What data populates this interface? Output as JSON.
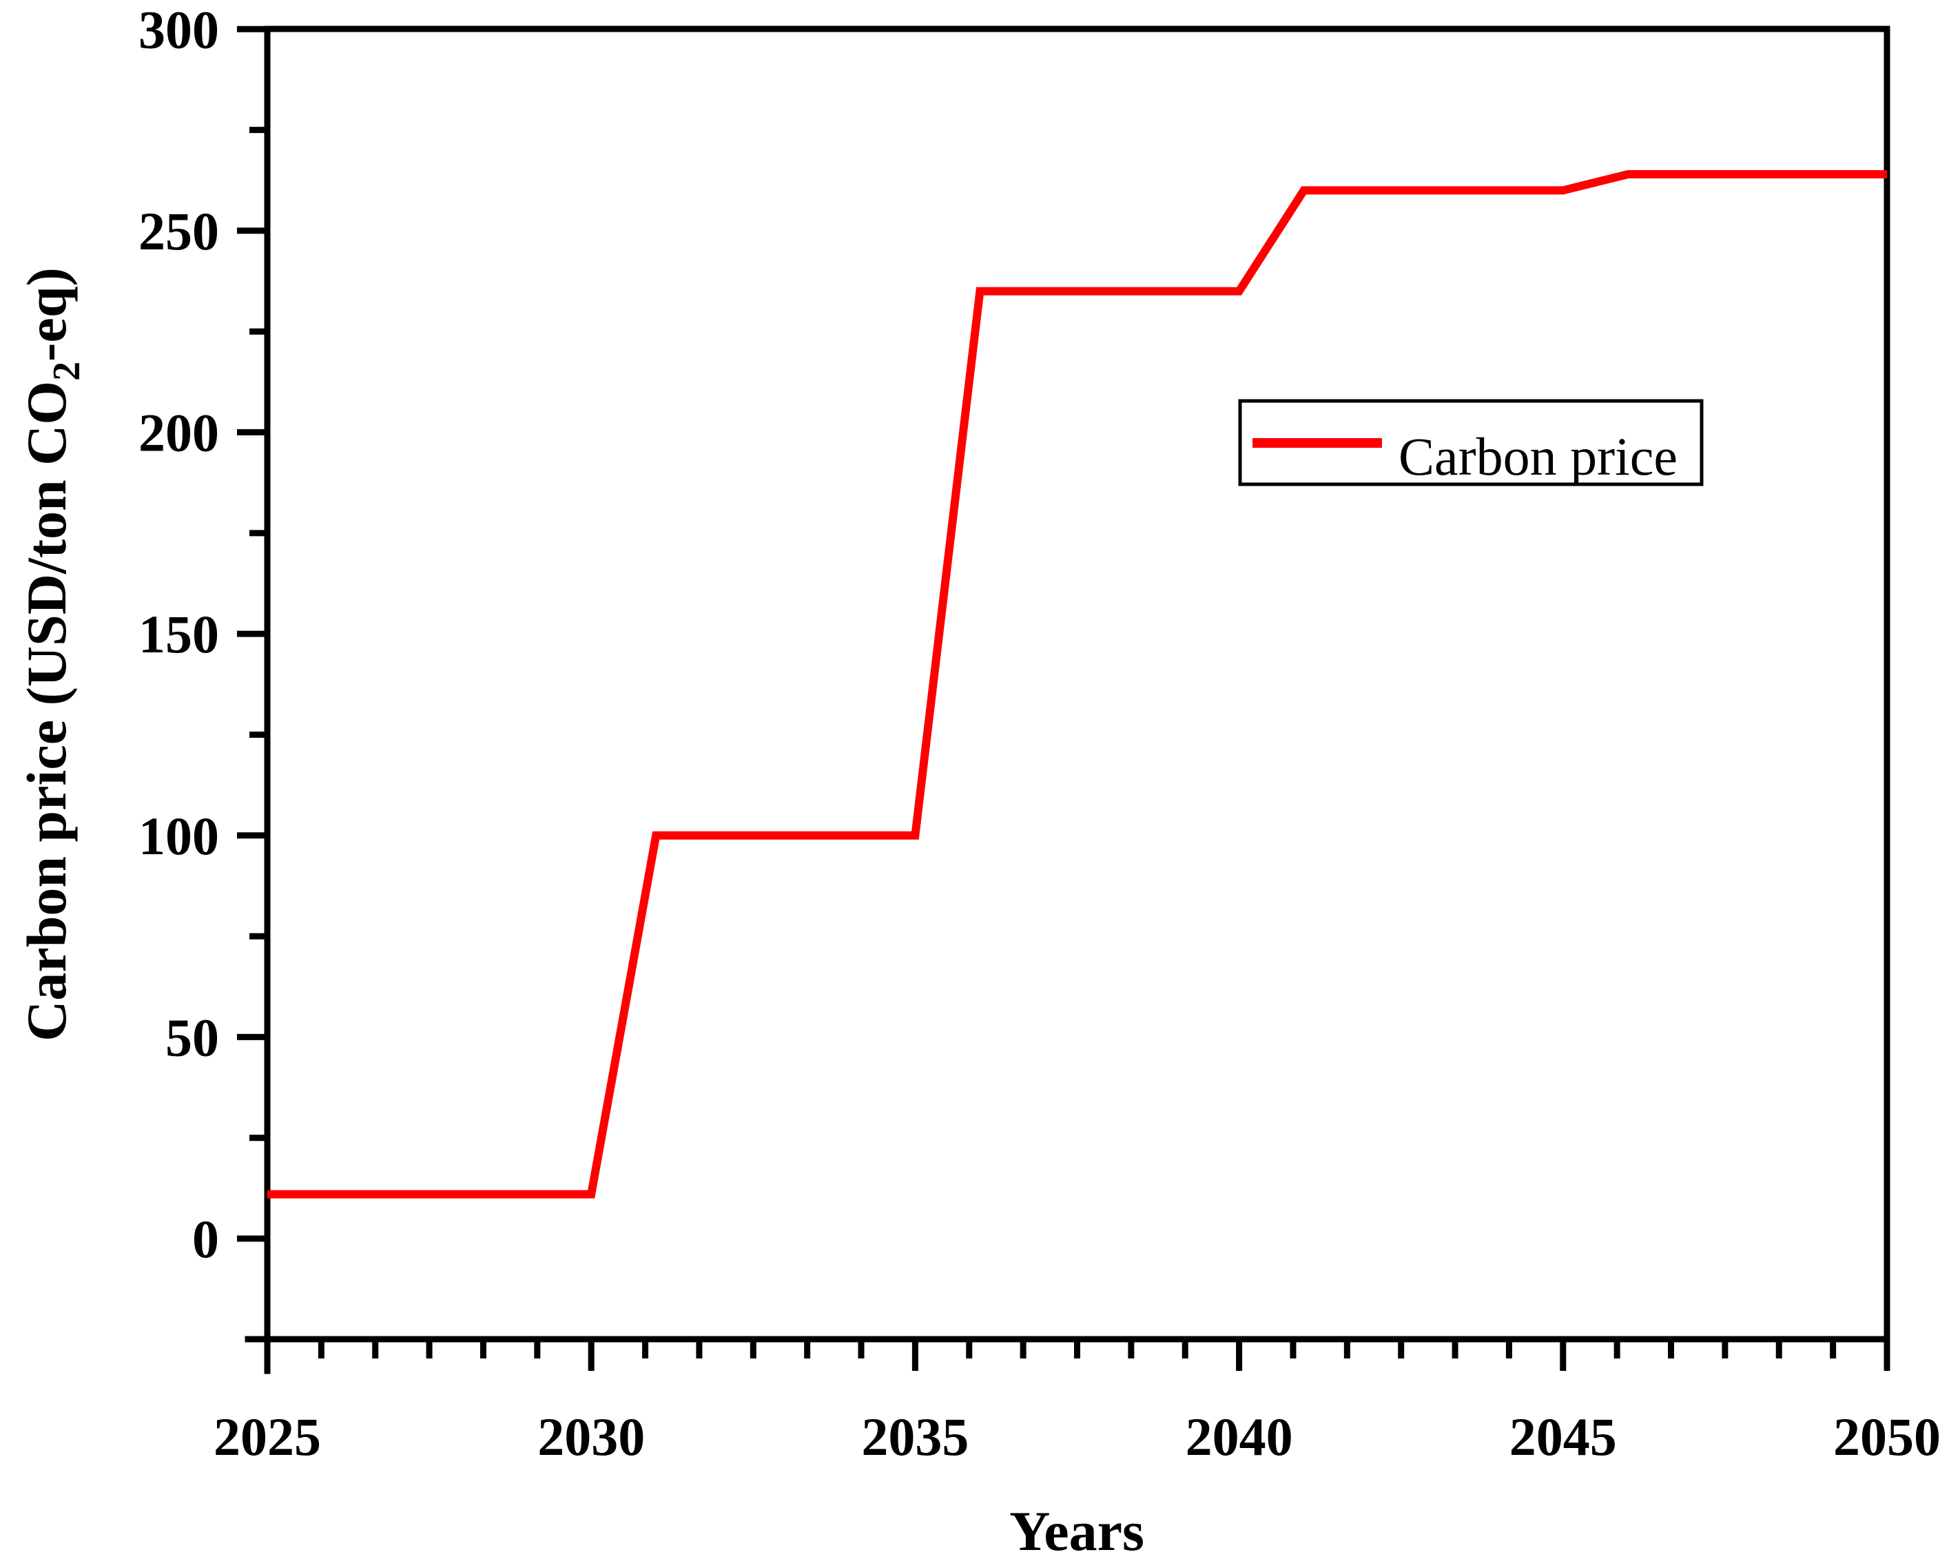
{
  "figure": {
    "background_color": "#FFFFFF",
    "axis_color": "#000000"
  },
  "chart_data": {
    "type": "line",
    "title": "",
    "xlabel": "Years",
    "ylabel": "Carbon price (USD/ton CO2-eq)",
    "ylabel_parts": {
      "pre": "Carbon price (USD/ton CO",
      "sub": "2",
      "post": "-eq)"
    },
    "xlim": [
      2025,
      2050
    ],
    "ylim": [
      -25,
      300
    ],
    "x_ticks": [
      2025,
      2030,
      2035,
      2040,
      2045,
      2050
    ],
    "x_minor_divisions": 6,
    "y_ticks": [
      0,
      50,
      100,
      150,
      200,
      250,
      300
    ],
    "y_minor_ticks": [
      25,
      75,
      125,
      175,
      225,
      275
    ],
    "grid": false,
    "legend": {
      "position": "inside-upper-right",
      "border": true,
      "entries": [
        {
          "label": "Carbon price",
          "color": "#FF0000"
        }
      ]
    },
    "series": [
      {
        "name": "Carbon price",
        "color": "#FF0000",
        "points": [
          [
            2025,
            11
          ],
          [
            2030,
            11
          ],
          [
            2031,
            100
          ],
          [
            2035,
            100
          ],
          [
            2036,
            235
          ],
          [
            2040,
            235
          ],
          [
            2041,
            260
          ],
          [
            2045,
            260
          ],
          [
            2046,
            264
          ],
          [
            2050,
            264
          ]
        ]
      }
    ]
  }
}
